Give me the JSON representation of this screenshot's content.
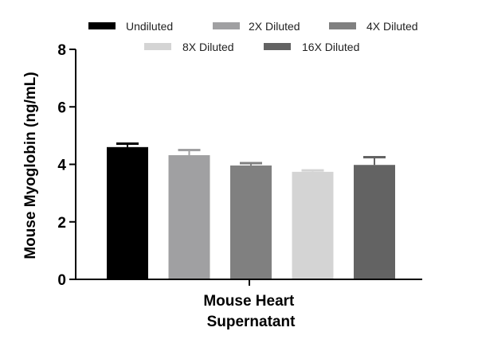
{
  "chart_data": {
    "type": "bar",
    "title": "",
    "ylabel": "Mouse Myoglobin (ng/mL)",
    "xlabel_lines": [
      "Mouse Heart",
      "Supernatant"
    ],
    "ylim": [
      0,
      8
    ],
    "yticks": [
      0,
      2,
      4,
      6,
      8
    ],
    "legend_position": "top",
    "series": [
      {
        "name": "Undiluted",
        "value": 4.6,
        "error": 0.12,
        "color": "#000000"
      },
      {
        "name": "2X Diluted",
        "value": 4.32,
        "error": 0.18,
        "color": "#a0a0a2"
      },
      {
        "name": "4X Diluted",
        "value": 3.96,
        "error": 0.08,
        "color": "#808080"
      },
      {
        "name": "8X Diluted",
        "value": 3.74,
        "error": 0.05,
        "color": "#d4d4d4"
      },
      {
        "name": "16X Diluted",
        "value": 3.98,
        "error": 0.27,
        "color": "#636363"
      }
    ]
  }
}
